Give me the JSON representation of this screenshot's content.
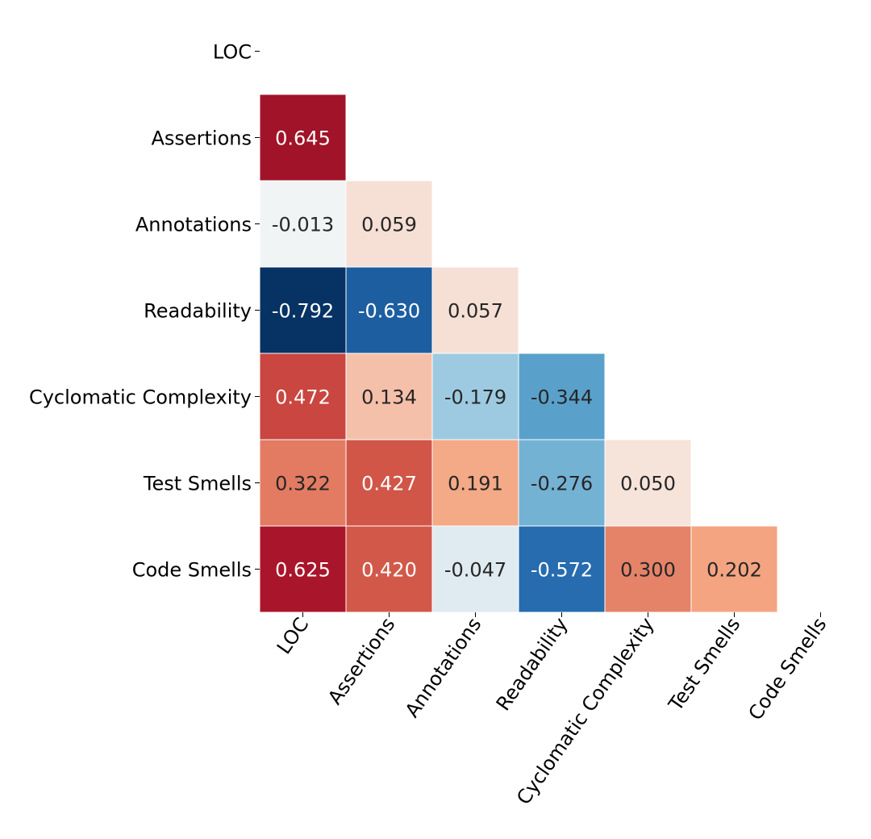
{
  "chart_data": {
    "type": "heatmap",
    "variables": [
      "LOC",
      "Assertions",
      "Annotations",
      "Readability",
      "Cyclomatic Complexity",
      "Test Smells",
      "Code Smells"
    ],
    "cells": [
      {
        "row": 1,
        "col": 0,
        "value": 0.645,
        "label": "0.645"
      },
      {
        "row": 2,
        "col": 0,
        "value": -0.013,
        "label": "-0.013"
      },
      {
        "row": 2,
        "col": 1,
        "value": 0.059,
        "label": "0.059"
      },
      {
        "row": 3,
        "col": 0,
        "value": -0.792,
        "label": "-0.792"
      },
      {
        "row": 3,
        "col": 1,
        "value": -0.63,
        "label": "-0.630"
      },
      {
        "row": 3,
        "col": 2,
        "value": 0.057,
        "label": "0.057"
      },
      {
        "row": 4,
        "col": 0,
        "value": 0.472,
        "label": "0.472"
      },
      {
        "row": 4,
        "col": 1,
        "value": 0.134,
        "label": "0.134"
      },
      {
        "row": 4,
        "col": 2,
        "value": -0.179,
        "label": "-0.179"
      },
      {
        "row": 4,
        "col": 3,
        "value": -0.344,
        "label": "-0.344"
      },
      {
        "row": 5,
        "col": 0,
        "value": 0.322,
        "label": "0.322"
      },
      {
        "row": 5,
        "col": 1,
        "value": 0.427,
        "label": "0.427"
      },
      {
        "row": 5,
        "col": 2,
        "value": 0.191,
        "label": "0.191"
      },
      {
        "row": 5,
        "col": 3,
        "value": -0.276,
        "label": "-0.276"
      },
      {
        "row": 5,
        "col": 4,
        "value": 0.05,
        "label": "0.050"
      },
      {
        "row": 6,
        "col": 0,
        "value": 0.625,
        "label": "0.625"
      },
      {
        "row": 6,
        "col": 1,
        "value": 0.42,
        "label": "0.420"
      },
      {
        "row": 6,
        "col": 2,
        "value": -0.047,
        "label": "-0.047"
      },
      {
        "row": 6,
        "col": 3,
        "value": -0.572,
        "label": "-0.572"
      },
      {
        "row": 6,
        "col": 4,
        "value": 0.3,
        "label": "0.300"
      },
      {
        "row": 6,
        "col": 5,
        "value": 0.202,
        "label": "0.202"
      }
    ],
    "mask": "upper-triangle-and-diagonal",
    "colormap": "RdBu_r",
    "vmin": -0.8,
    "vmax": 0.8,
    "title": "",
    "xlabel": "",
    "ylabel": "",
    "colors": {
      "cell_border": "#ffffff",
      "axis_text": "#000000",
      "dark_label": "#262626",
      "light_label": "#ffffff"
    }
  }
}
